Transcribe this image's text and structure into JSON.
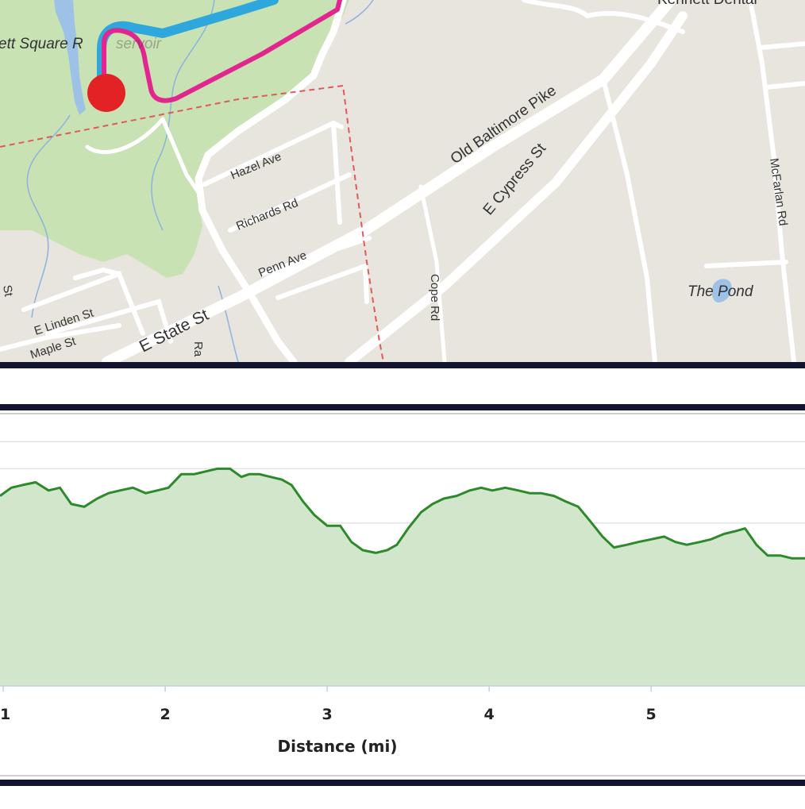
{
  "map": {
    "labels": {
      "reservoir": "ett Square R",
      "reservoir_faded": "servoir",
      "business": "Kennett Dental",
      "hazel": "Hazel Ave",
      "richards": "Richards Rd",
      "penn": "Penn Ave",
      "old_baltimore": "Old Baltimore Pike",
      "cypress": "E Cypress St",
      "cope": "Cope Rd",
      "mcfarlan": "McFarlan Rd",
      "pond": "The Pond",
      "linden": "E Linden St",
      "maple": "Maple St",
      "state": "E State St",
      "partial_st": "St",
      "partial_ra": "Ra"
    },
    "colors": {
      "route": "#e2258f",
      "track": "#2ea8dc",
      "start_marker": "#e32226",
      "park": "#c9e2b3",
      "water": "#9ec2e6",
      "boundary": "#e05a5a"
    }
  },
  "chart_data": {
    "type": "area",
    "xlabel": "Distance (mi)",
    "ylabel": "",
    "x_ticks": [
      1,
      2,
      3,
      4,
      5
    ],
    "xlim": [
      0.98,
      5.95
    ],
    "ylim": [
      0,
      100
    ],
    "grid": true,
    "color_line": "#2d8a2a",
    "color_fill": "#d2e6cb",
    "x": [
      0.98,
      1.05,
      1.12,
      1.2,
      1.28,
      1.35,
      1.42,
      1.5,
      1.58,
      1.65,
      1.72,
      1.8,
      1.88,
      1.95,
      2.02,
      2.1,
      2.18,
      2.25,
      2.32,
      2.4,
      2.47,
      2.52,
      2.58,
      2.65,
      2.72,
      2.78,
      2.85,
      2.92,
      3.0,
      3.08,
      3.15,
      3.22,
      3.3,
      3.37,
      3.43,
      3.5,
      3.58,
      3.65,
      3.72,
      3.8,
      3.88,
      3.95,
      4.02,
      4.1,
      4.18,
      4.25,
      4.32,
      4.4,
      4.47,
      4.55,
      4.62,
      4.7,
      4.77,
      4.85,
      4.92,
      5.0,
      5.08,
      5.15,
      5.22,
      5.3,
      5.37,
      5.45,
      5.52,
      5.58,
      5.65,
      5.72,
      5.8,
      5.87,
      5.95
    ],
    "values": [
      70,
      73,
      74,
      75,
      72,
      73,
      67,
      66,
      69,
      71,
      72,
      73,
      71,
      72,
      73,
      78,
      78,
      79,
      80,
      80,
      77,
      78,
      78,
      77,
      76,
      74,
      68,
      63,
      59,
      59,
      53,
      50,
      49,
      50,
      52,
      58,
      64,
      67,
      69,
      70,
      72,
      73,
      72,
      73,
      72,
      71,
      71,
      70,
      68,
      66,
      61,
      55,
      51,
      52,
      53,
      54,
      55,
      53,
      52,
      53,
      54,
      56,
      57,
      58,
      52,
      48,
      48,
      47,
      47
    ]
  }
}
